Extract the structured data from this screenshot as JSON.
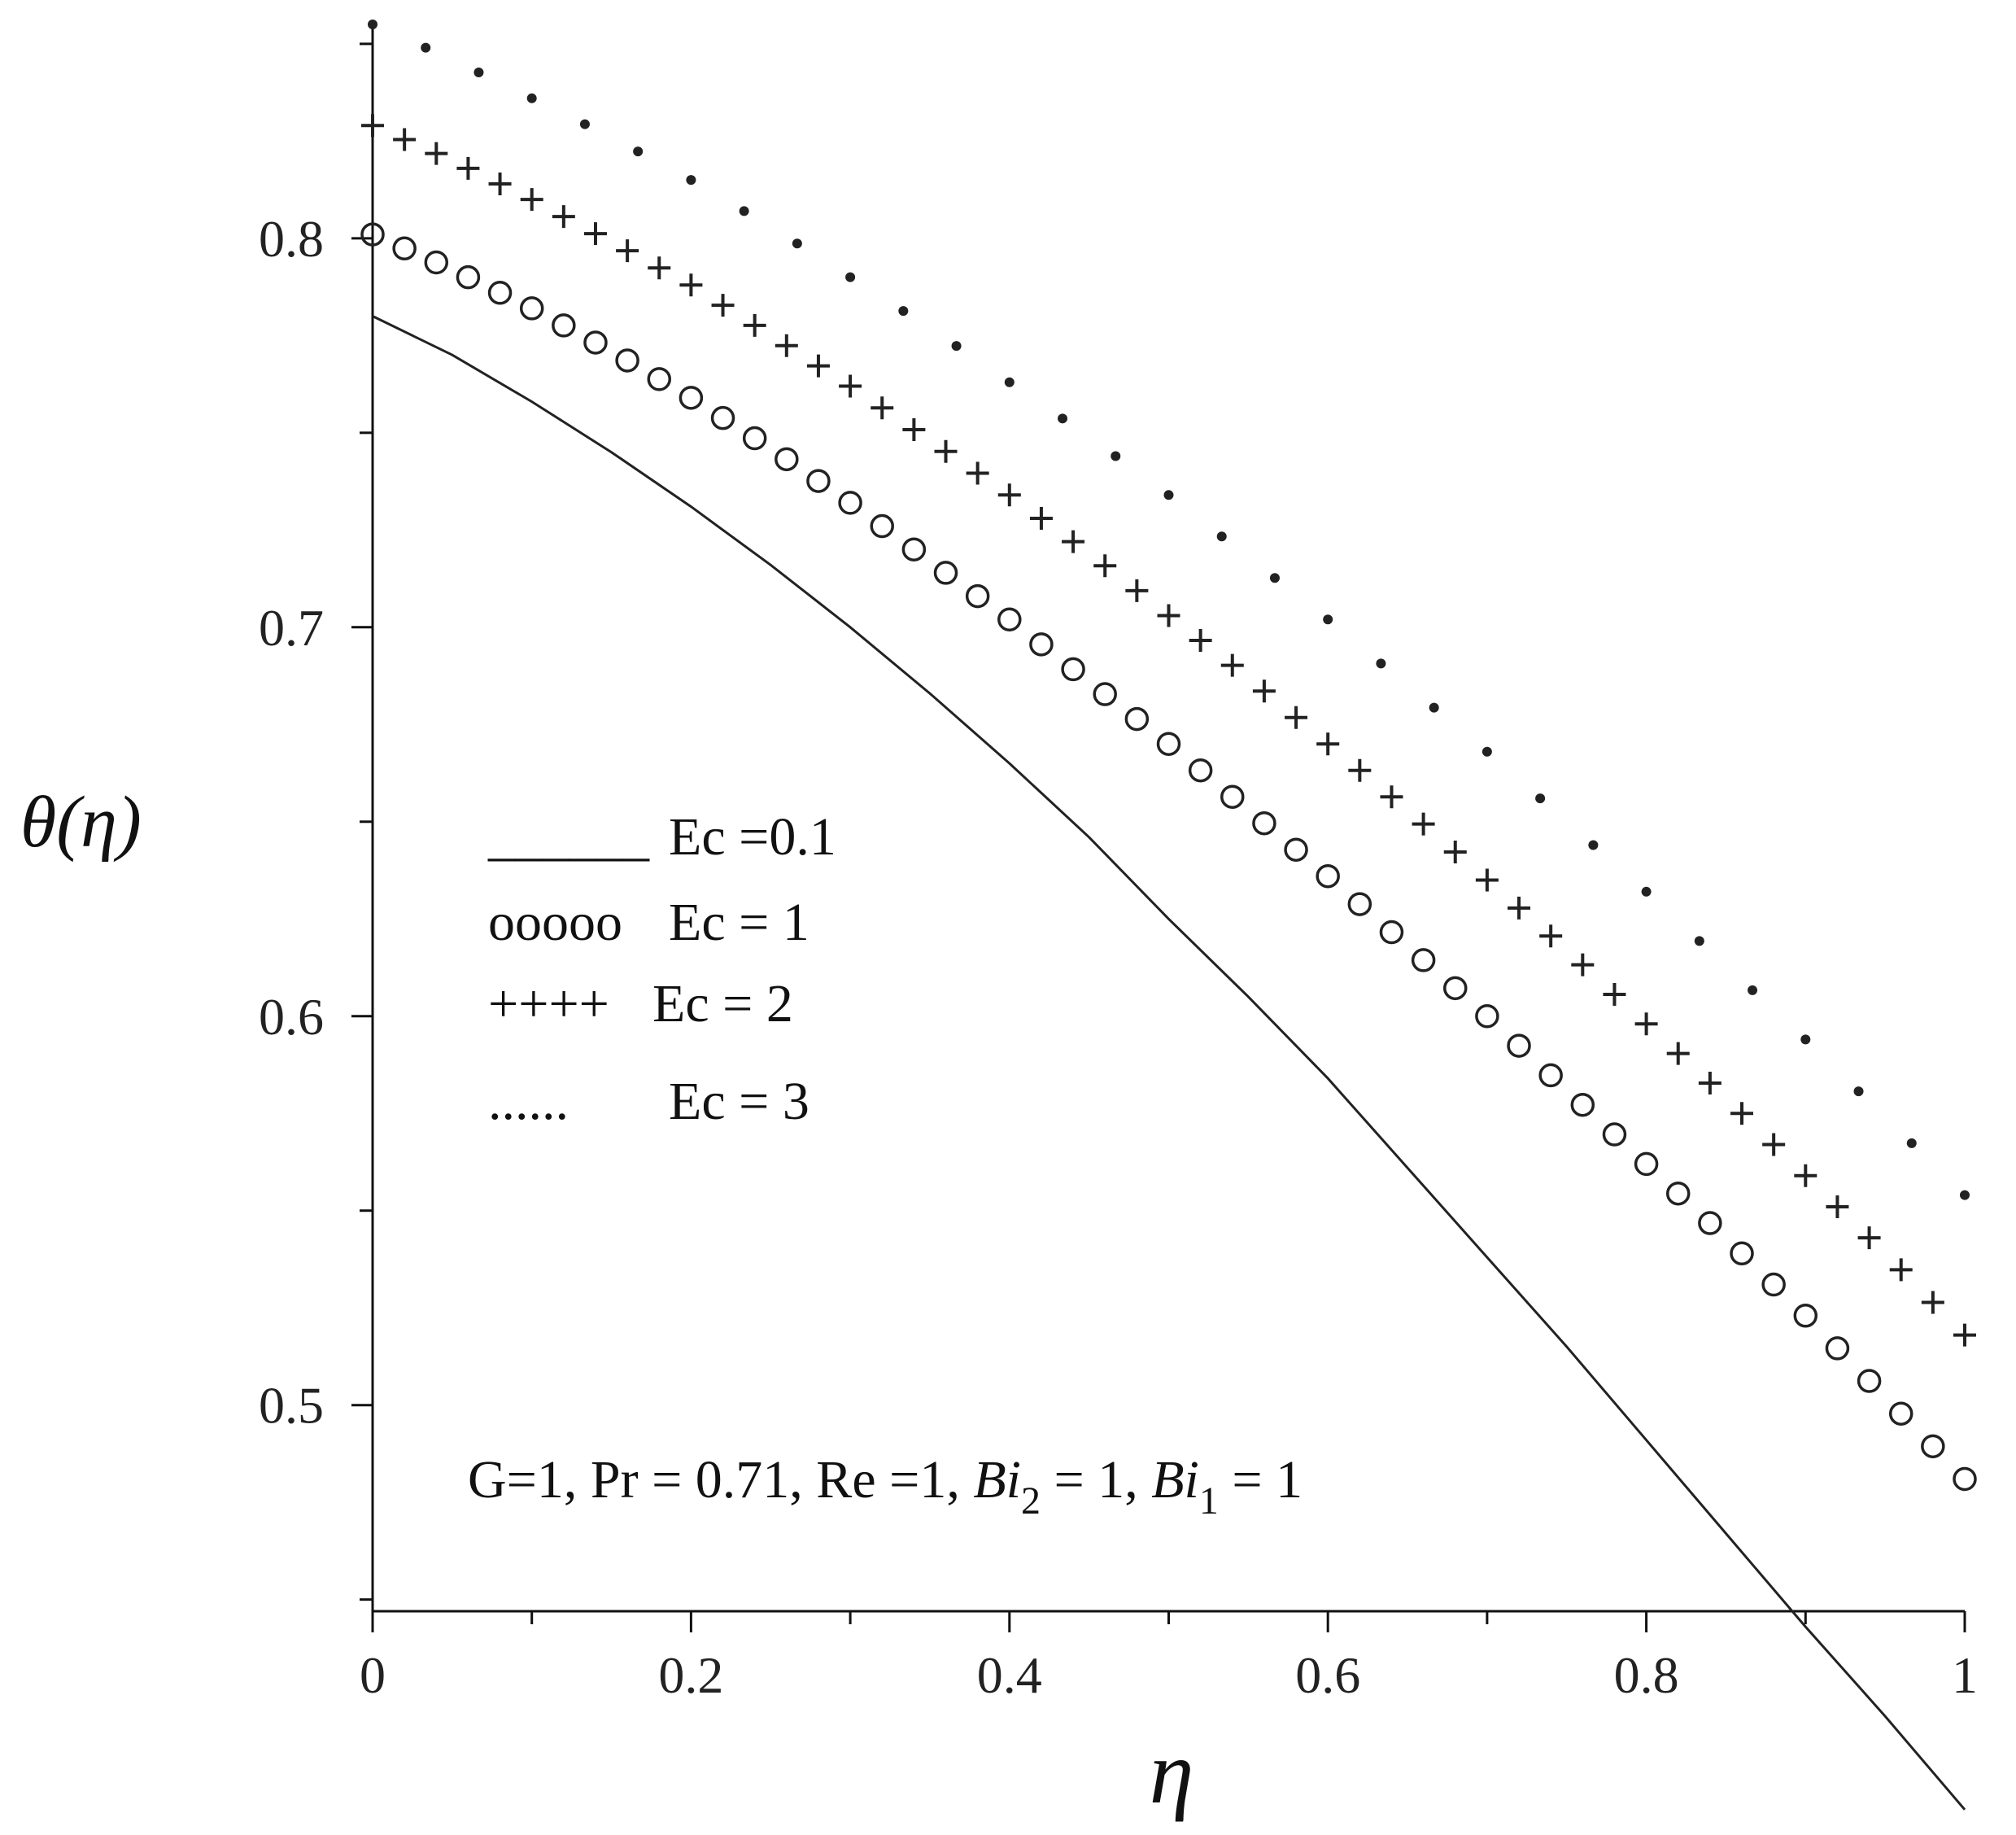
{
  "chart_data": {
    "type": "line",
    "xlabel": "η",
    "ylabel": "θ(η)",
    "xlim": [
      0,
      1
    ],
    "ylim": [
      0.45,
      0.855
    ],
    "x_ticks": [
      0,
      0.2,
      0.4,
      0.6,
      0.8,
      1
    ],
    "x_tick_labels": [
      "0",
      "0.2",
      "0.4",
      "0.6",
      "0.8",
      "1"
    ],
    "y_ticks": [
      0.5,
      0.6,
      0.7,
      0.8
    ],
    "y_tick_labels": [
      "0.5",
      "0.6",
      "0.7",
      "0.8"
    ],
    "grid": false,
    "legend_placement": "center-left",
    "series": [
      {
        "name": "Ec =0.1",
        "legend_marker": "______",
        "style": "solid",
        "x": [
          0,
          0.05,
          0.1,
          0.15,
          0.2,
          0.25,
          0.3,
          0.35,
          0.4,
          0.45,
          0.5,
          0.55,
          0.6,
          0.65,
          0.7,
          0.75,
          0.8,
          0.85,
          0.9,
          0.95,
          1
        ],
        "y": [
          0.78,
          0.77,
          0.758,
          0.745,
          0.731,
          0.716,
          0.7,
          0.683,
          0.665,
          0.646,
          0.625,
          0.605,
          0.584,
          0.561,
          0.538,
          0.515,
          0.491,
          0.467,
          0.443,
          0.42,
          0.396
        ]
      },
      {
        "name": "Ec = 1",
        "legend_marker": "ooooo",
        "style": "circle",
        "x": [
          0,
          0.05,
          0.1,
          0.15,
          0.2,
          0.25,
          0.3,
          0.35,
          0.4,
          0.45,
          0.5,
          0.55,
          0.6,
          0.65,
          0.7,
          0.75,
          0.8,
          0.85,
          0.9,
          0.95,
          1
        ],
        "y": [
          0.801,
          0.792,
          0.782,
          0.771,
          0.759,
          0.746,
          0.732,
          0.717,
          0.702,
          0.686,
          0.67,
          0.653,
          0.636,
          0.618,
          0.6,
          0.581,
          0.562,
          0.543,
          0.523,
          0.502,
          0.481
        ]
      },
      {
        "name": "Ec = 2",
        "legend_marker": "++++",
        "style": "plus",
        "x": [
          0,
          0.05,
          0.1,
          0.15,
          0.2,
          0.25,
          0.3,
          0.35,
          0.4,
          0.45,
          0.5,
          0.55,
          0.6,
          0.65,
          0.7,
          0.75,
          0.8,
          0.85,
          0.9,
          0.95,
          1
        ],
        "y": [
          0.829,
          0.82,
          0.81,
          0.799,
          0.788,
          0.775,
          0.762,
          0.748,
          0.734,
          0.719,
          0.703,
          0.687,
          0.67,
          0.653,
          0.635,
          0.617,
          0.598,
          0.579,
          0.559,
          0.539,
          0.518
        ]
      },
      {
        "name": "Ec = 3",
        "legend_marker": "......",
        "style": "dot",
        "x": [
          0,
          0.05,
          0.1,
          0.15,
          0.2,
          0.25,
          0.3,
          0.35,
          0.4,
          0.45,
          0.5,
          0.55,
          0.6,
          0.65,
          0.7,
          0.75,
          0.8,
          0.85,
          0.9,
          0.95,
          1
        ],
        "y": [
          0.855,
          0.846,
          0.836,
          0.826,
          0.815,
          0.803,
          0.79,
          0.777,
          0.763,
          0.749,
          0.734,
          0.718,
          0.702,
          0.685,
          0.668,
          0.65,
          0.632,
          0.613,
          0.594,
          0.574,
          0.554
        ]
      }
    ],
    "annotation": {
      "G": "G=1, ",
      "Pr": "Pr = 0.71, ",
      "Re": "Re =1, ",
      "Bi2_sym": "Bi",
      "Bi2_sub": "2",
      "Bi2_val": " = 1,  ",
      "Bi1_sym": "Bi",
      "Bi1_sub": "1",
      "Bi1_val": " = 1"
    }
  }
}
